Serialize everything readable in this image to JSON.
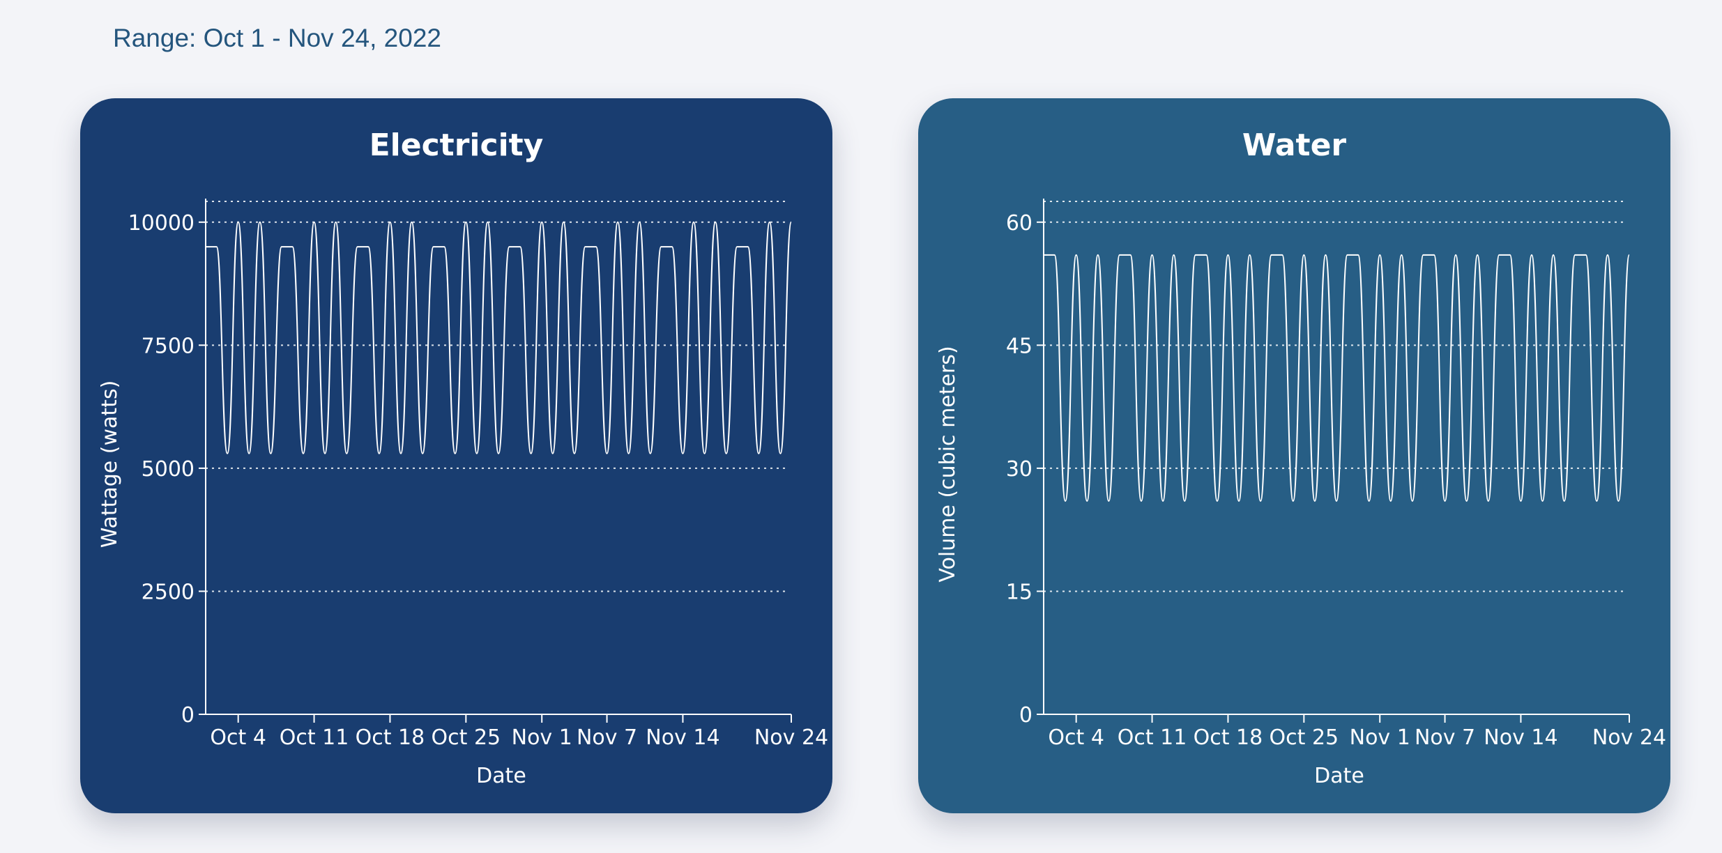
{
  "header": {
    "range_label": "Range: Oct 1 - Nov 24, 2022"
  },
  "colors": {
    "page_background": "#f3f4f8",
    "range_text": "#24557d",
    "electricity_card": "#193d70",
    "water_card": "#275e85",
    "line": "#ffffff"
  },
  "chart_data": [
    {
      "id": "electricity",
      "type": "line",
      "title": "Electricity",
      "xlabel": "Date",
      "ylabel": "Wattage (watts)",
      "x_range": [
        "2022-10-01",
        "2022-11-24"
      ],
      "ylim": [
        0,
        10000
      ],
      "y_ticks": [
        0,
        2500,
        5000,
        7500,
        10000
      ],
      "x_tick_labels": [
        "Oct 4",
        "Oct 11",
        "Oct 18",
        "Oct 25",
        "Nov 1",
        "Nov 7",
        "Nov 14",
        "Nov 24"
      ],
      "x_tick_dates": [
        "2022-10-04",
        "2022-10-11",
        "2022-10-18",
        "2022-10-25",
        "2022-11-01",
        "2022-11-07",
        "2022-11-14",
        "2022-11-24"
      ],
      "grid": "horizontal dotted",
      "series": [
        {
          "color": "#ffffff",
          "description_values": {
            "peak": 10000,
            "trough": 5300,
            "plateau": 9500
          },
          "cycle_pattern": [
            "plateau",
            "peak",
            "peak"
          ],
          "points": [
            [
              "2022-10-01",
              9500
            ],
            [
              "2022-10-02",
              9500
            ],
            [
              "2022-10-03",
              5300
            ],
            [
              "2022-10-04",
              10000
            ],
            [
              "2022-10-05",
              5300
            ],
            [
              "2022-10-06",
              10000
            ],
            [
              "2022-10-07",
              5300
            ],
            [
              "2022-10-08",
              9500
            ],
            [
              "2022-10-09",
              9500
            ],
            [
              "2022-10-10",
              5300
            ],
            [
              "2022-10-11",
              10000
            ],
            [
              "2022-10-12",
              5300
            ],
            [
              "2022-10-13",
              10000
            ],
            [
              "2022-10-14",
              5300
            ],
            [
              "2022-10-15",
              9500
            ],
            [
              "2022-10-16",
              9500
            ],
            [
              "2022-10-17",
              5300
            ],
            [
              "2022-10-18",
              10000
            ],
            [
              "2022-10-19",
              5300
            ],
            [
              "2022-10-20",
              10000
            ],
            [
              "2022-10-21",
              5300
            ],
            [
              "2022-10-22",
              9500
            ],
            [
              "2022-10-23",
              9500
            ],
            [
              "2022-10-24",
              5300
            ],
            [
              "2022-10-25",
              10000
            ],
            [
              "2022-10-26",
              5300
            ],
            [
              "2022-10-27",
              10000
            ],
            [
              "2022-10-28",
              5300
            ],
            [
              "2022-10-29",
              9500
            ],
            [
              "2022-10-30",
              9500
            ],
            [
              "2022-10-31",
              5300
            ],
            [
              "2022-11-01",
              10000
            ],
            [
              "2022-11-02",
              5300
            ],
            [
              "2022-11-03",
              10000
            ],
            [
              "2022-11-04",
              5300
            ],
            [
              "2022-11-05",
              9500
            ],
            [
              "2022-11-06",
              9500
            ],
            [
              "2022-11-07",
              5300
            ],
            [
              "2022-11-08",
              10000
            ],
            [
              "2022-11-09",
              5300
            ],
            [
              "2022-11-10",
              10000
            ],
            [
              "2022-11-11",
              5300
            ],
            [
              "2022-11-12",
              9500
            ],
            [
              "2022-11-13",
              9500
            ],
            [
              "2022-11-14",
              5300
            ],
            [
              "2022-11-15",
              10000
            ],
            [
              "2022-11-16",
              5300
            ],
            [
              "2022-11-17",
              10000
            ],
            [
              "2022-11-18",
              5300
            ],
            [
              "2022-11-19",
              9500
            ],
            [
              "2022-11-20",
              9500
            ],
            [
              "2022-11-21",
              5300
            ],
            [
              "2022-11-22",
              10000
            ],
            [
              "2022-11-23",
              5300
            ],
            [
              "2022-11-24",
              10000
            ]
          ]
        }
      ]
    },
    {
      "id": "water",
      "type": "line",
      "title": "Water",
      "xlabel": "Date",
      "ylabel": "Volume (cubic meters)",
      "x_range": [
        "2022-10-01",
        "2022-11-24"
      ],
      "ylim": [
        0,
        60
      ],
      "y_ticks": [
        0,
        15,
        30,
        45,
        60
      ],
      "x_tick_labels": [
        "Oct 4",
        "Oct 11",
        "Oct 18",
        "Oct 25",
        "Nov 1",
        "Nov 7",
        "Nov 14",
        "Nov 24"
      ],
      "x_tick_dates": [
        "2022-10-04",
        "2022-10-11",
        "2022-10-18",
        "2022-10-25",
        "2022-11-01",
        "2022-11-07",
        "2022-11-14",
        "2022-11-24"
      ],
      "grid": "horizontal dotted",
      "series": [
        {
          "color": "#ffffff",
          "points": [
            [
              "2022-10-01",
              56
            ],
            [
              "2022-10-02",
              56
            ],
            [
              "2022-10-03",
              26
            ],
            [
              "2022-10-04",
              56
            ],
            [
              "2022-10-05",
              26
            ],
            [
              "2022-10-06",
              56
            ],
            [
              "2022-10-07",
              26
            ],
            [
              "2022-10-08",
              56
            ],
            [
              "2022-10-09",
              56
            ],
            [
              "2022-10-10",
              26
            ],
            [
              "2022-10-11",
              56
            ],
            [
              "2022-10-12",
              26
            ],
            [
              "2022-10-13",
              56
            ],
            [
              "2022-10-14",
              26
            ],
            [
              "2022-10-15",
              56
            ],
            [
              "2022-10-16",
              56
            ],
            [
              "2022-10-17",
              26
            ],
            [
              "2022-10-18",
              56
            ],
            [
              "2022-10-19",
              26
            ],
            [
              "2022-10-20",
              56
            ],
            [
              "2022-10-21",
              26
            ],
            [
              "2022-10-22",
              56
            ],
            [
              "2022-10-23",
              56
            ],
            [
              "2022-10-24",
              26
            ],
            [
              "2022-10-25",
              56
            ],
            [
              "2022-10-26",
              26
            ],
            [
              "2022-10-27",
              56
            ],
            [
              "2022-10-28",
              26
            ],
            [
              "2022-10-29",
              56
            ],
            [
              "2022-10-30",
              56
            ],
            [
              "2022-10-31",
              26
            ],
            [
              "2022-11-01",
              56
            ],
            [
              "2022-11-02",
              26
            ],
            [
              "2022-11-03",
              56
            ],
            [
              "2022-11-04",
              26
            ],
            [
              "2022-11-05",
              56
            ],
            [
              "2022-11-06",
              56
            ],
            [
              "2022-11-07",
              26
            ],
            [
              "2022-11-08",
              56
            ],
            [
              "2022-11-09",
              26
            ],
            [
              "2022-11-10",
              56
            ],
            [
              "2022-11-11",
              26
            ],
            [
              "2022-11-12",
              56
            ],
            [
              "2022-11-13",
              56
            ],
            [
              "2022-11-14",
              26
            ],
            [
              "2022-11-15",
              56
            ],
            [
              "2022-11-16",
              26
            ],
            [
              "2022-11-17",
              56
            ],
            [
              "2022-11-18",
              26
            ],
            [
              "2022-11-19",
              56
            ],
            [
              "2022-11-20",
              56
            ],
            [
              "2022-11-21",
              26
            ],
            [
              "2022-11-22",
              56
            ],
            [
              "2022-11-23",
              26
            ],
            [
              "2022-11-24",
              56
            ]
          ]
        }
      ]
    }
  ]
}
